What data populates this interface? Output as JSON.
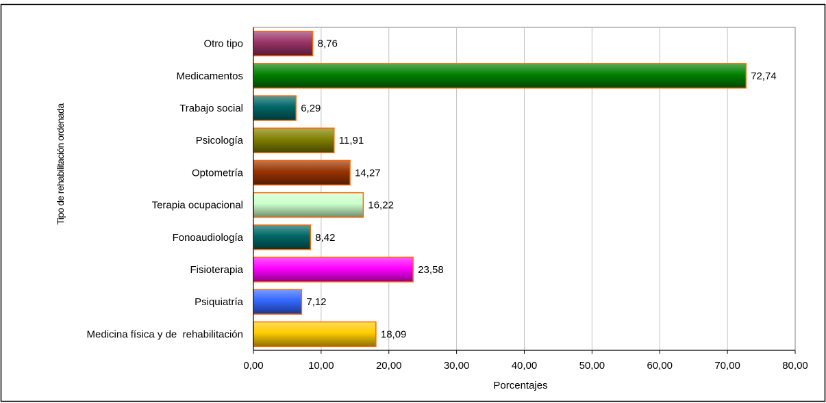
{
  "chart_data": {
    "type": "bar",
    "orientation": "horizontal",
    "title": "",
    "xlabel": "Porcentajes",
    "ylabel": "Tipo de rehabilitación ordenada",
    "xlim": [
      0,
      80
    ],
    "xticks": [
      "0,00",
      "10,00",
      "20,00",
      "30,00",
      "40,00",
      "50,00",
      "60,00",
      "70,00",
      "80,00"
    ],
    "grid": "vertical",
    "legend": "none",
    "categories": [
      "Otro tipo",
      "Medicamentos",
      "Trabajo social",
      "Psicología",
      "Optometría",
      "Terapia ocupacional",
      "Fonoaudiología",
      "Fisioterapia",
      "Psiquiatría",
      "Medicina física y de  rehabilitación"
    ],
    "values": [
      8.76,
      72.74,
      6.29,
      11.91,
      14.27,
      16.22,
      8.42,
      23.58,
      7.12,
      18.09
    ],
    "value_labels": [
      "8,76",
      "72,74",
      "6,29",
      "11,91",
      "14,27",
      "16,22",
      "8,42",
      "23,58",
      "7,12",
      "18,09"
    ],
    "bar_colors": [
      "#993366",
      "#008000",
      "#006666",
      "#808000",
      "#993300",
      "#ccffcc",
      "#006666",
      "#ff00ff",
      "#3366ff",
      "#ffcc00"
    ],
    "bar_edge_color": "#ff6600"
  }
}
